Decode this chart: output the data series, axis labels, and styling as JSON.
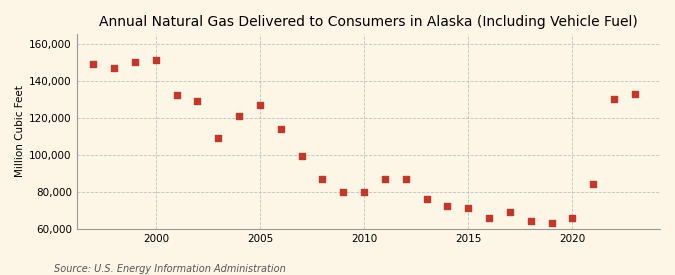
{
  "title": "Annual Natural Gas Delivered to Consumers in Alaska (Including Vehicle Fuel)",
  "ylabel": "Million Cubic Feet",
  "source": "Source: U.S. Energy Information Administration",
  "years": [
    1997,
    1998,
    1999,
    2000,
    2001,
    2002,
    2003,
    2004,
    2005,
    2006,
    2007,
    2008,
    2009,
    2010,
    2011,
    2012,
    2013,
    2014,
    2015,
    2016,
    2017,
    2018,
    2019,
    2020,
    2021,
    2022,
    2023
  ],
  "values": [
    149000,
    147000,
    150000,
    151000,
    132000,
    129000,
    109000,
    121000,
    127000,
    114000,
    99000,
    87000,
    80000,
    80000,
    87000,
    87000,
    76000,
    72000,
    71000,
    66000,
    69000,
    64000,
    63000,
    66000,
    84000,
    130000,
    133000
  ],
  "marker_color": "#c0392b",
  "marker_size": 14,
  "bg_color": "#fdf5e6",
  "grid_color": "#bbbbbb",
  "ylim": [
    60000,
    165000
  ],
  "yticks": [
    60000,
    80000,
    100000,
    120000,
    140000,
    160000
  ],
  "ytick_labels": [
    "60,000",
    "80,000",
    "100,000",
    "120,000",
    "140,000",
    "160,000"
  ],
  "xticks": [
    2000,
    2005,
    2010,
    2015,
    2020
  ],
  "xlim": [
    1996.2,
    2024.2
  ],
  "title_fontsize": 10,
  "label_fontsize": 7.5,
  "source_fontsize": 7
}
